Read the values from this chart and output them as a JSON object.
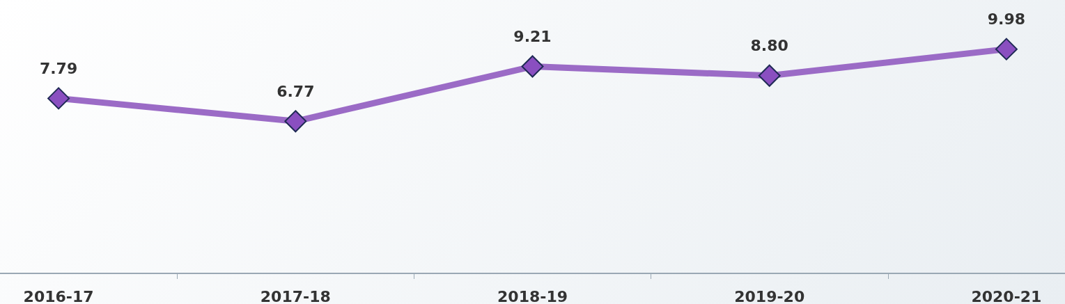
{
  "chart_data": {
    "type": "line",
    "categories": [
      "2016-17",
      "2017-18",
      "2018-19",
      "2019-20",
      "2020-21"
    ],
    "series": [
      {
        "color": "#9b6bc6",
        "values": [
          7.79,
          6.77,
          9.21,
          8.8,
          9.98
        ],
        "value_labels": [
          "7.79",
          "6.77",
          "9.21",
          "8.80",
          "9.98"
        ]
      }
    ],
    "marker": "diamond",
    "line_style": "solid",
    "tick_labels": "x"
  }
}
